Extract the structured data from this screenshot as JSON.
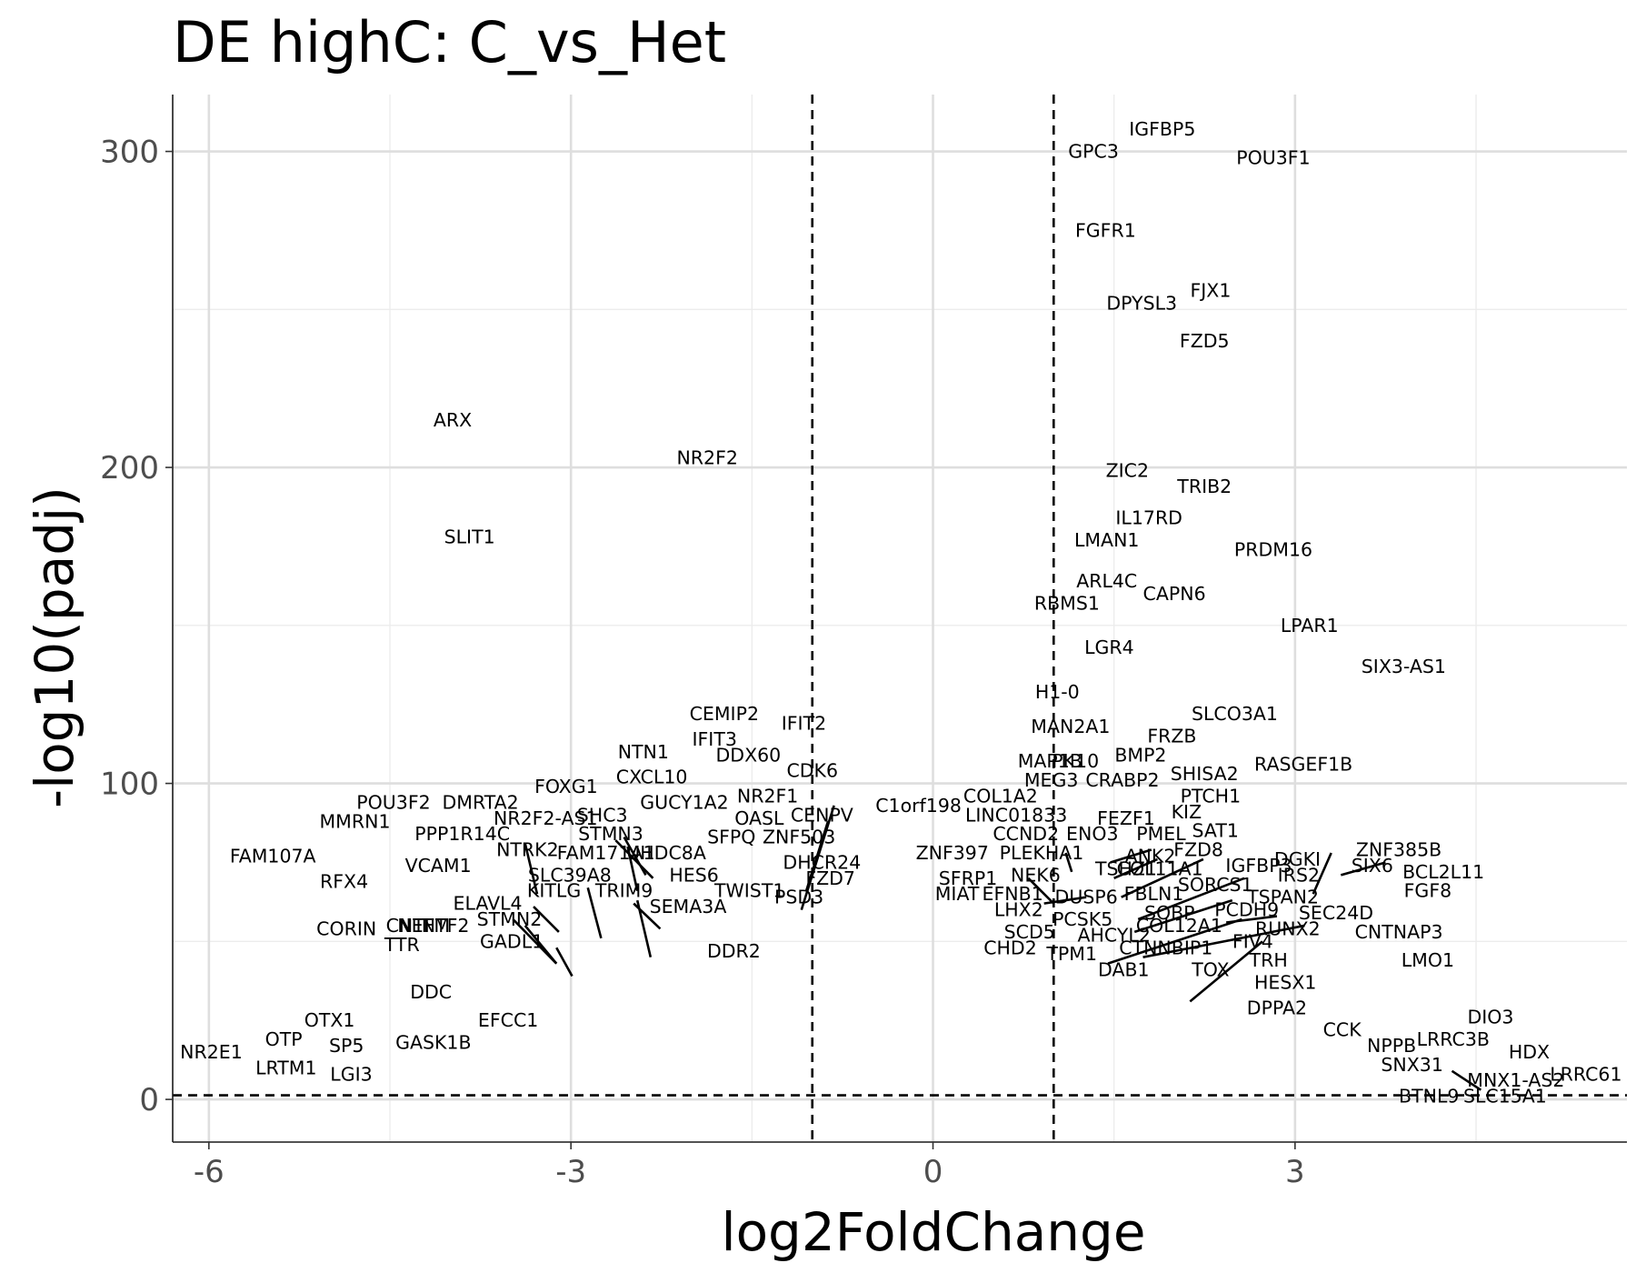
{
  "chart_data": {
    "type": "scatter",
    "title": "DE highC: C_vs_Het",
    "xlabel": "log2FoldChange",
    "ylabel": "-log10(padj)",
    "xlim": [
      -6.3,
      5.75
    ],
    "ylim": [
      -13.5,
      318
    ],
    "xticks": [
      -6,
      -3,
      0,
      3
    ],
    "xtick_labels": [
      "-6",
      "-3",
      "0",
      "3"
    ],
    "yticks": [
      0,
      100,
      200,
      300
    ],
    "ytick_labels": [
      "0",
      "100",
      "200",
      "300"
    ],
    "grid": true,
    "legend": "none",
    "thresholds": {
      "log2fc": [
        -1,
        1
      ],
      "neg_log10_padj": 1.3
    },
    "genes": [
      {
        "label": "IGFBP5",
        "x": 1.9,
        "y": 307
      },
      {
        "label": "GPC3",
        "x": 1.33,
        "y": 300
      },
      {
        "label": "POU3F1",
        "x": 2.82,
        "y": 298
      },
      {
        "label": "FGFR1",
        "x": 1.43,
        "y": 275
      },
      {
        "label": "FJX1",
        "x": 2.3,
        "y": 256
      },
      {
        "label": "DPYSL3",
        "x": 1.73,
        "y": 252
      },
      {
        "label": "FZD5",
        "x": 2.25,
        "y": 240
      },
      {
        "label": "ARX",
        "x": -3.98,
        "y": 215
      },
      {
        "label": "NR2F2",
        "x": -1.87,
        "y": 203
      },
      {
        "label": "ZIC2",
        "x": 1.61,
        "y": 199
      },
      {
        "label": "TRIB2",
        "x": 2.25,
        "y": 194
      },
      {
        "label": "IL17RD",
        "x": 1.79,
        "y": 184
      },
      {
        "label": "SLIT1",
        "x": -3.84,
        "y": 178
      },
      {
        "label": "LMAN1",
        "x": 1.44,
        "y": 177
      },
      {
        "label": "PRDM16",
        "x": 2.82,
        "y": 174
      },
      {
        "label": "ARL4C",
        "x": 1.44,
        "y": 164
      },
      {
        "label": "CAPN6",
        "x": 2.0,
        "y": 160
      },
      {
        "label": "RBMS1",
        "x": 1.11,
        "y": 157
      },
      {
        "label": "LPAR1",
        "x": 3.12,
        "y": 150
      },
      {
        "label": "LGR4",
        "x": 1.46,
        "y": 143
      },
      {
        "label": "SIX3-AS1",
        "x": 3.9,
        "y": 137
      },
      {
        "label": "H1-0",
        "x": 1.03,
        "y": 129
      },
      {
        "label": "CEMIP2",
        "x": -1.73,
        "y": 122
      },
      {
        "label": "SLCO3A1",
        "x": 2.5,
        "y": 122
      },
      {
        "label": "IFIT2",
        "x": -1.07,
        "y": 119
      },
      {
        "label": "MAN2A1",
        "x": 1.14,
        "y": 118
      },
      {
        "label": "FRZB",
        "x": 1.98,
        "y": 115
      },
      {
        "label": "IFIT3",
        "x": -1.81,
        "y": 114
      },
      {
        "label": "NTN1",
        "x": -2.4,
        "y": 110
      },
      {
        "label": "BMP2",
        "x": 1.72,
        "y": 109
      },
      {
        "label": "DDX60",
        "x": -1.53,
        "y": 109
      },
      {
        "label": "MAP1B",
        "x": 0.97,
        "y": 107
      },
      {
        "label": "PK10",
        "x": 1.18,
        "y": 107
      },
      {
        "label": "RASGEF1B",
        "x": 3.07,
        "y": 106
      },
      {
        "label": "SHISA2",
        "x": 2.25,
        "y": 103
      },
      {
        "label": "CDK6",
        "x": -1.0,
        "y": 104
      },
      {
        "label": "CXCL10",
        "x": -2.33,
        "y": 102
      },
      {
        "label": "MEG3",
        "x": 0.98,
        "y": 101
      },
      {
        "label": "CRABP2",
        "x": 1.57,
        "y": 101
      },
      {
        "label": "FOXG1",
        "x": -3.04,
        "y": 99
      },
      {
        "label": "PTCH1",
        "x": 2.3,
        "y": 96
      },
      {
        "label": "COL1A2",
        "x": 0.56,
        "y": 96
      },
      {
        "label": "NR2F1",
        "x": -1.37,
        "y": 96
      },
      {
        "label": "POU3F2",
        "x": -4.47,
        "y": 94
      },
      {
        "label": "DMRTA2",
        "x": -3.75,
        "y": 94
      },
      {
        "label": "GUCY1A2",
        "x": -2.06,
        "y": 94
      },
      {
        "label": "C1orf198",
        "x": -0.12,
        "y": 93
      },
      {
        "label": "KIZ",
        "x": 2.1,
        "y": 91
      },
      {
        "label": "LINC01833",
        "x": 0.69,
        "y": 90
      },
      {
        "label": "FEZF1",
        "x": 1.6,
        "y": 89
      },
      {
        "label": "SHC3",
        "x": -2.74,
        "y": 90
      },
      {
        "label": "OASL",
        "x": -1.44,
        "y": 89
      },
      {
        "label": "CENPV",
        "x": -0.92,
        "y": 90
      },
      {
        "label": "NR2F2-AS1",
        "x": -3.21,
        "y": 89
      },
      {
        "label": "MMRN1",
        "x": -4.79,
        "y": 88
      },
      {
        "label": "SAT1",
        "x": 2.34,
        "y": 85
      },
      {
        "label": "PPP1R14C",
        "x": -3.9,
        "y": 84
      },
      {
        "label": "STMN3",
        "x": -2.67,
        "y": 84
      },
      {
        "label": "SFPQ",
        "x": -1.67,
        "y": 83
      },
      {
        "label": "ZNF503",
        "x": -1.11,
        "y": 83
      },
      {
        "label": "CCND2",
        "x": 0.77,
        "y": 84
      },
      {
        "label": "ENO3",
        "x": 1.32,
        "y": 84
      },
      {
        "label": "PMEL",
        "x": 1.89,
        "y": 84
      },
      {
        "label": "NTRK2",
        "x": -3.36,
        "y": 79
      },
      {
        "label": "FZD8",
        "x": 2.2,
        "y": 79
      },
      {
        "label": "ZNF385B",
        "x": 3.86,
        "y": 79
      },
      {
        "label": "FAM171A1",
        "x": -2.71,
        "y": 78
      },
      {
        "label": "UHDC8A",
        "x": -2.21,
        "y": 78
      },
      {
        "label": "FAM107A",
        "x": -5.47,
        "y": 77
      },
      {
        "label": "ZNF397",
        "x": 0.16,
        "y": 78
      },
      {
        "label": "PLEKHA1",
        "x": 0.9,
        "y": 78
      },
      {
        "label": "ANK2",
        "x": 1.8,
        "y": 77
      },
      {
        "label": "DGKI",
        "x": 3.02,
        "y": 76
      },
      {
        "label": "DHCR24",
        "x": -0.92,
        "y": 75
      },
      {
        "label": "COL11A1",
        "x": 1.88,
        "y": 73
      },
      {
        "label": "IGFBP3",
        "x": 2.7,
        "y": 74
      },
      {
        "label": "TSHZ1",
        "x": 1.6,
        "y": 73
      },
      {
        "label": "SIX6",
        "x": 3.64,
        "y": 74
      },
      {
        "label": "VCAM1",
        "x": -4.1,
        "y": 74
      },
      {
        "label": "BCL2L11",
        "x": 4.23,
        "y": 72
      },
      {
        "label": "SLC39A8",
        "x": -3.01,
        "y": 71
      },
      {
        "label": "HES6",
        "x": -1.98,
        "y": 71
      },
      {
        "label": "FZD7",
        "x": -0.85,
        "y": 70
      },
      {
        "label": "IRS2",
        "x": 3.03,
        "y": 71
      },
      {
        "label": "RFX4",
        "x": -4.88,
        "y": 69
      },
      {
        "label": "SFRP1",
        "x": 0.29,
        "y": 70
      },
      {
        "label": "NEK6",
        "x": 0.85,
        "y": 71
      },
      {
        "label": "SORCS1",
        "x": 2.34,
        "y": 68
      },
      {
        "label": "KITLG",
        "x": -3.14,
        "y": 66
      },
      {
        "label": "TRIM9",
        "x": -2.56,
        "y": 66
      },
      {
        "label": "TWIST1",
        "x": -1.52,
        "y": 66
      },
      {
        "label": "FGF8",
        "x": 4.1,
        "y": 66
      },
      {
        "label": "MIAT",
        "x": 0.2,
        "y": 65
      },
      {
        "label": "EFNB1",
        "x": 0.66,
        "y": 65
      },
      {
        "label": "DUSP6",
        "x": 1.27,
        "y": 64
      },
      {
        "label": "FBLN1",
        "x": 1.83,
        "y": 65
      },
      {
        "label": "TSPAN2",
        "x": 2.9,
        "y": 64
      },
      {
        "label": "PSD3",
        "x": -1.11,
        "y": 64
      },
      {
        "label": "ELAVL4",
        "x": -3.69,
        "y": 62
      },
      {
        "label": "SEMA3A",
        "x": -2.03,
        "y": 61
      },
      {
        "label": "SOBP",
        "x": 1.96,
        "y": 59
      },
      {
        "label": "PCDH9",
        "x": 2.6,
        "y": 60
      },
      {
        "label": "LHX2",
        "x": 0.71,
        "y": 60
      },
      {
        "label": "SEC24D",
        "x": 3.34,
        "y": 59
      },
      {
        "label": "PCSK5",
        "x": 1.24,
        "y": 57
      },
      {
        "label": "STMN2",
        "x": -3.51,
        "y": 57
      },
      {
        "label": "COL12A1",
        "x": 2.04,
        "y": 55
      },
      {
        "label": "RUNX2",
        "x": 2.94,
        "y": 54
      },
      {
        "label": "CORIN",
        "x": -4.86,
        "y": 54
      },
      {
        "label": "CNTF",
        "x": -4.33,
        "y": 55
      },
      {
        "label": "NEFM",
        "x": -4.22,
        "y": 55
      },
      {
        "label": "NTF2",
        "x": -4.04,
        "y": 55
      },
      {
        "label": "SCD5",
        "x": 0.8,
        "y": 53
      },
      {
        "label": "AHCYL2",
        "x": 1.5,
        "y": 52
      },
      {
        "label": "CNTNAP3",
        "x": 3.86,
        "y": 53
      },
      {
        "label": "TTR",
        "x": -4.4,
        "y": 49
      },
      {
        "label": "GADL1",
        "x": -3.49,
        "y": 50
      },
      {
        "label": "CTNNBIP1",
        "x": 1.93,
        "y": 48
      },
      {
        "label": "FIV4",
        "x": 2.65,
        "y": 50
      },
      {
        "label": "CHD2",
        "x": 0.64,
        "y": 48
      },
      {
        "label": "TPM1",
        "x": 1.15,
        "y": 46
      },
      {
        "label": "DDR2",
        "x": -1.65,
        "y": 47
      },
      {
        "label": "TRH",
        "x": 2.78,
        "y": 44
      },
      {
        "label": "LMO1",
        "x": 4.1,
        "y": 44
      },
      {
        "label": "DAB1",
        "x": 1.58,
        "y": 41
      },
      {
        "label": "TOX",
        "x": 2.3,
        "y": 41
      },
      {
        "label": "HESX1",
        "x": 2.92,
        "y": 37
      },
      {
        "label": "DDC",
        "x": -4.16,
        "y": 34
      },
      {
        "label": "DPPA2",
        "x": 2.85,
        "y": 29
      },
      {
        "label": "EFCC1",
        "x": -3.52,
        "y": 25
      },
      {
        "label": "OTX1",
        "x": -5.0,
        "y": 25
      },
      {
        "label": "DIO3",
        "x": 4.62,
        "y": 26
      },
      {
        "label": "CCK",
        "x": 3.39,
        "y": 22
      },
      {
        "label": "OTP",
        "x": -5.38,
        "y": 19
      },
      {
        "label": "LRRC3B",
        "x": 4.31,
        "y": 19
      },
      {
        "label": "GASK1B",
        "x": -4.14,
        "y": 18
      },
      {
        "label": "NPPB",
        "x": 3.8,
        "y": 17
      },
      {
        "label": "SP5",
        "x": -4.86,
        "y": 17
      },
      {
        "label": "NR2E1",
        "x": -5.98,
        "y": 15
      },
      {
        "label": "HDX",
        "x": 4.94,
        "y": 15
      },
      {
        "label": "SNX31",
        "x": 3.97,
        "y": 11
      },
      {
        "label": "LRTM1",
        "x": -5.36,
        "y": 10
      },
      {
        "label": "LGI3",
        "x": -4.82,
        "y": 8
      },
      {
        "label": "LRRC61",
        "x": 5.41,
        "y": 8
      },
      {
        "label": "MNX1-AS2",
        "x": 4.83,
        "y": 6
      },
      {
        "label": "BTNL9",
        "x": 4.11,
        "y": 1
      },
      {
        "label": "SLC15A1",
        "x": 4.74,
        "y": 1
      }
    ],
    "connectors": [
      {
        "x1": -0.82,
        "y1": 93,
        "x2": -1.09,
        "y2": 60
      },
      {
        "x1": -0.87,
        "y1": 88,
        "x2": -1.05,
        "y2": 66
      },
      {
        "x1": -3.38,
        "y1": 81,
        "x2": -3.28,
        "y2": 65
      },
      {
        "x1": -3.48,
        "y1": 57,
        "x2": -3.12,
        "y2": 43
      },
      {
        "x1": -3.38,
        "y1": 55,
        "x2": -3.12,
        "y2": 43
      },
      {
        "x1": -3.31,
        "y1": 61,
        "x2": -3.1,
        "y2": 53
      },
      {
        "x1": -3.12,
        "y1": 48,
        "x2": -2.99,
        "y2": 39
      },
      {
        "x1": -2.86,
        "y1": 67,
        "x2": -2.75,
        "y2": 51
      },
      {
        "x1": -2.63,
        "y1": 82,
        "x2": -2.32,
        "y2": 70
      },
      {
        "x1": -2.56,
        "y1": 83,
        "x2": -2.38,
        "y2": 71
      },
      {
        "x1": -2.53,
        "y1": 80,
        "x2": -2.45,
        "y2": 66
      },
      {
        "x1": -2.45,
        "y1": 63,
        "x2": -2.34,
        "y2": 45
      },
      {
        "x1": -2.48,
        "y1": 62,
        "x2": -2.26,
        "y2": 54
      },
      {
        "x1": 0.79,
        "y1": 70,
        "x2": 1.0,
        "y2": 62
      },
      {
        "x1": 1.1,
        "y1": 78,
        "x2": 1.15,
        "y2": 72
      },
      {
        "x1": 1.27,
        "y1": 64,
        "x2": 0.92,
        "y2": 62
      },
      {
        "x1": 1.47,
        "y1": 75,
        "x2": 1.81,
        "y2": 79
      },
      {
        "x1": 1.5,
        "y1": 70,
        "x2": 1.86,
        "y2": 76
      },
      {
        "x1": 1.56,
        "y1": 64,
        "x2": 2.24,
        "y2": 76
      },
      {
        "x1": 1.7,
        "y1": 57,
        "x2": 2.58,
        "y2": 70
      },
      {
        "x1": 1.67,
        "y1": 53,
        "x2": 2.48,
        "y2": 63
      },
      {
        "x1": 1.45,
        "y1": 43,
        "x2": 2.56,
        "y2": 57
      },
      {
        "x1": 1.74,
        "y1": 45,
        "x2": 3.08,
        "y2": 55
      },
      {
        "x1": 2.13,
        "y1": 31,
        "x2": 2.73,
        "y2": 50
      },
      {
        "x1": 2.43,
        "y1": 56,
        "x2": 2.85,
        "y2": 58
      },
      {
        "x1": 3.15,
        "y1": 65,
        "x2": 3.3,
        "y2": 78
      },
      {
        "x1": 3.38,
        "y1": 71,
        "x2": 3.75,
        "y2": 75
      },
      {
        "x1": 4.3,
        "y1": 9,
        "x2": 4.54,
        "y2": 3
      }
    ]
  }
}
